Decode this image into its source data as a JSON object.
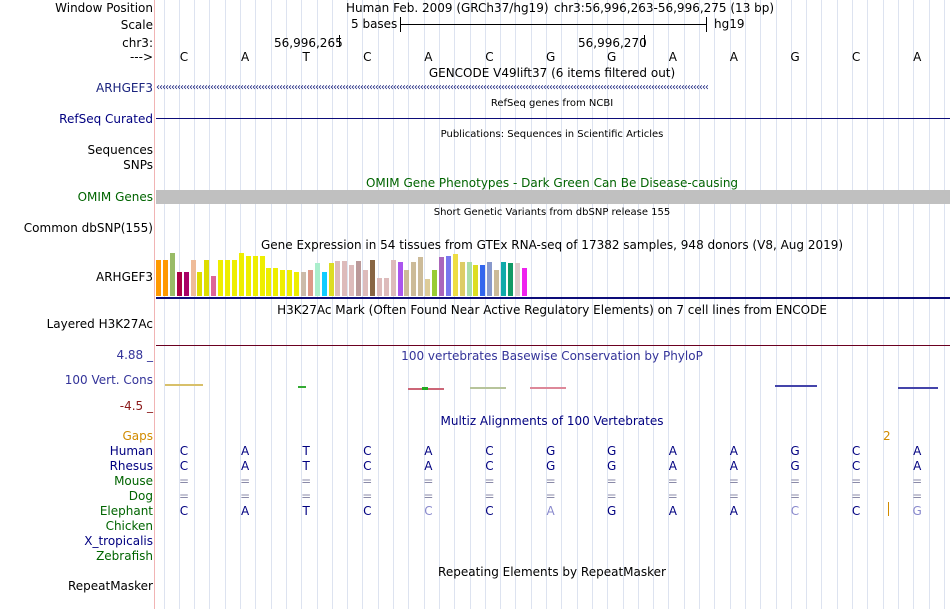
{
  "header": {
    "window_position_label": "Window Position",
    "assembly_text": "Human Feb. 2009 (GRCh37/hg19)",
    "position_text": "chr3:56,996,263-56,996,275 (13 bp)",
    "scale_label": "Scale",
    "scale_text": "5 bases",
    "scale_db": "hg19",
    "chrom_label": "chr3:",
    "coord_left": "56,996,265",
    "coord_right": "56,996,270",
    "strand_label": "--->"
  },
  "bases": [
    "C",
    "A",
    "T",
    "C",
    "A",
    "C",
    "G",
    "G",
    "A",
    "A",
    "G",
    "C",
    "A"
  ],
  "tracks": {
    "gencode": {
      "title": "GENCODE V49lift37 (6 items filtered out)",
      "label": "ARHGEF3",
      "color": "#1a237e"
    },
    "refseq": {
      "title": "RefSeq genes from NCBI",
      "label": "RefSeq Curated",
      "color": "#0c0c78"
    },
    "publications": {
      "title": "Publications: Sequences in Scientific Articles",
      "label_1": "Sequences",
      "label_2": "SNPs"
    },
    "omim": {
      "title": "OMIM Gene Phenotypes - Dark Green Can Be Disease-causing",
      "label": "OMIM Genes",
      "color": "#006400"
    },
    "dbsnp": {
      "title": "Short Genetic Variants from dbSNP release 155",
      "label": "Common dbSNP(155)"
    },
    "gtex": {
      "title": "Gene Expression in 54 tissues from GTEx RNA-seq of 17382 samples, 948 donors (V8, Aug 2019)",
      "label": "ARHGEF3",
      "bar_values": [
        36,
        36,
        43,
        24,
        24,
        36,
        24,
        36,
        20,
        36,
        36,
        36,
        43,
        40,
        40,
        40,
        28,
        28,
        26,
        26,
        24,
        24,
        26,
        33,
        24,
        33,
        35,
        35,
        31,
        35,
        26,
        36,
        18,
        18,
        36,
        34,
        26,
        34,
        39,
        17,
        26,
        39,
        40,
        42,
        34,
        34,
        31,
        31,
        34,
        26,
        34,
        33,
        33,
        28
      ],
      "bar_colors": [
        "#ff9900",
        "#ff9900",
        "#99bb66",
        "#aa0044",
        "#aa0066",
        "#eebb99",
        "#dddd00",
        "#dddd00",
        "#dd6699",
        "#eeee00",
        "#eeee00",
        "#eeee00",
        "#eeee00",
        "#eeee00",
        "#eeee00",
        "#eeee00",
        "#eeee00",
        "#eeee00",
        "#eeee00",
        "#eeee00",
        "#eeee00",
        "#ccbbaa",
        "#dd9988",
        "#aaeecc",
        "#11ccff",
        "#dddd22",
        "#ddbbbb",
        "#ddbbbb",
        "#ddbbbb",
        "#bb9999",
        "#ddbbbb",
        "#886644",
        "#ddbbbb",
        "#ddbbbb",
        "#ddbbbb",
        "#aa55ee",
        "#ccbb99",
        "#ccbb99",
        "#ccbb99",
        "#ddcc99",
        "#99cc33",
        "#aa66bb",
        "#7777ee",
        "#eedd44",
        "#ddcc66",
        "#aaddaa",
        "#dddd22",
        "#3366ee",
        "#8899cc",
        "#ccbb99",
        "#11aaaa",
        "#119966",
        "#ddcccc",
        "#ee22ee"
      ]
    },
    "h3k27ac": {
      "title": "H3K27Ac Mark (Often Found Near Active Regulatory Elements) on 7 cell lines from ENCODE",
      "label": "Layered H3K27Ac"
    },
    "conservation": {
      "title": "100 vertebrates Basewise Conservation by PhyloP",
      "label": "100 Vert. Cons",
      "max_value": "4.88 _",
      "min_value": "-4.5 _",
      "color": "#333399"
    },
    "multiz": {
      "title": "Multiz Alignments of 100 Vertebrates",
      "gaps_label": "Gaps",
      "gaps_value": "2",
      "species": [
        {
          "name": "Human",
          "bases": [
            "C",
            "A",
            "T",
            "C",
            "A",
            "C",
            "G",
            "G",
            "A",
            "A",
            "G",
            "C",
            "A"
          ]
        },
        {
          "name": "Rhesus",
          "bases": [
            "C",
            "A",
            "T",
            "C",
            "A",
            "C",
            "G",
            "G",
            "A",
            "A",
            "G",
            "C",
            "A"
          ]
        },
        {
          "name": "Mouse",
          "bases": [
            "=",
            "=",
            "=",
            "=",
            "=",
            "=",
            "=",
            "=",
            "=",
            "=",
            "=",
            "=",
            "="
          ]
        },
        {
          "name": "Dog",
          "bases": [
            "=",
            "=",
            "=",
            "=",
            "=",
            "=",
            "=",
            "=",
            "=",
            "=",
            "=",
            "=",
            "="
          ]
        },
        {
          "name": "Elephant",
          "bases": [
            "C",
            "A",
            "T",
            "C",
            "C",
            "C",
            "A",
            "G",
            "A",
            "A",
            "C",
            "C",
            "G"
          ]
        },
        {
          "name": "Chicken",
          "bases": []
        },
        {
          "name": "X_tropicalis",
          "bases": []
        },
        {
          "name": "Zebrafish",
          "bases": []
        }
      ]
    },
    "repeatmasker": {
      "title": "Repeating Elements by RepeatMasker",
      "label": "RepeatMasker"
    }
  },
  "colors": {
    "navy": "#000080",
    "darkgreen": "#006400",
    "gaps": "#d18b00",
    "border": "#f1b4b4"
  }
}
